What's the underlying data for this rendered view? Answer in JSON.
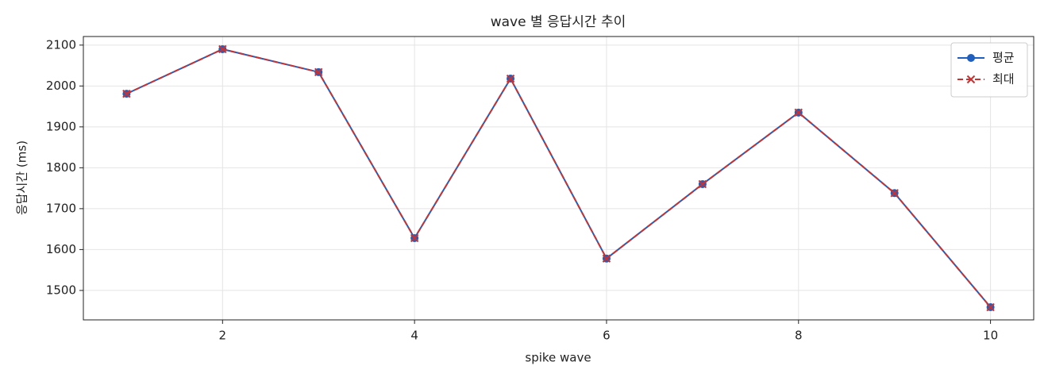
{
  "chart_data": {
    "type": "line",
    "title": "wave 별 응답시간 추이",
    "x_label": "spike wave",
    "y_label": "응답시간 (ms)",
    "x": [
      1,
      2,
      3,
      4,
      5,
      6,
      7,
      8,
      9,
      10
    ],
    "series": [
      {
        "name": "평균",
        "color": "#1f5fbf",
        "marker": "o",
        "linestyle": "solid",
        "values": [
          1981,
          2090,
          2034,
          1628,
          2018,
          1578,
          1760,
          1935,
          1738,
          1459
        ]
      },
      {
        "name": "최대",
        "color": "#c83232",
        "marker": "x",
        "linestyle": "dashed",
        "values": [
          1981,
          2090,
          2034,
          1628,
          2018,
          1578,
          1760,
          1935,
          1738,
          1459
        ]
      }
    ],
    "xlim": [
      0.55,
      10.45
    ],
    "ylim": [
      1428,
      2121
    ],
    "xticks": [
      2,
      4,
      6,
      8,
      10
    ],
    "yticks": [
      1500,
      1600,
      1700,
      1800,
      1900,
      2000,
      2100
    ],
    "grid": true,
    "legend": "upper right"
  }
}
